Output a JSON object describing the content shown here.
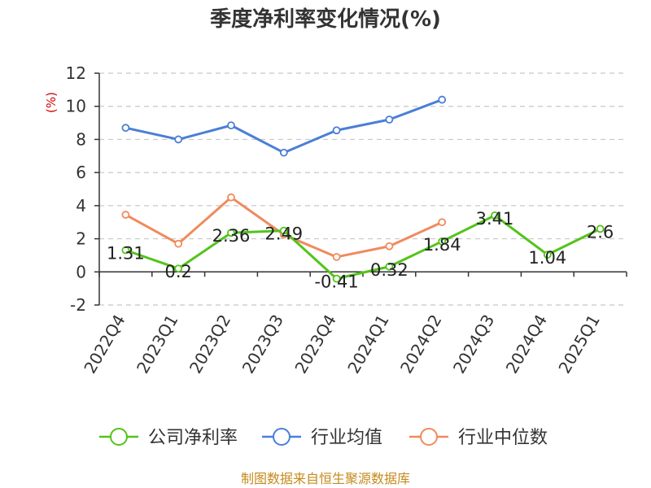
{
  "chart_data": {
    "type": "line",
    "title": "季度净利率变化情况(%)",
    "ylabel": "(%)",
    "categories": [
      "2022Q4",
      "2023Q1",
      "2023Q2",
      "2023Q3",
      "2023Q4",
      "2024Q1",
      "2024Q2",
      "2024Q3",
      "2024Q4",
      "2025Q1"
    ],
    "yticks": [
      -2,
      0,
      2,
      4,
      6,
      8,
      10,
      12
    ],
    "ylim": [
      -2,
      12
    ],
    "grid": true,
    "legend_position": "bottom",
    "series": [
      {
        "name": "公司净利率",
        "color": "#52c41a",
        "show_labels": true,
        "values": [
          1.31,
          0.2,
          2.36,
          2.49,
          -0.41,
          0.32,
          1.84,
          3.41,
          1.04,
          2.6
        ]
      },
      {
        "name": "行业均值",
        "color": "#4a7fd6",
        "show_labels": false,
        "values": [
          8.7,
          8.0,
          8.85,
          7.2,
          8.55,
          9.2,
          10.4,
          null,
          null,
          null
        ]
      },
      {
        "name": "行业中位数",
        "color": "#f08a5d",
        "show_labels": false,
        "values": [
          3.45,
          1.7,
          4.5,
          2.25,
          0.9,
          1.55,
          3.0,
          null,
          null,
          null
        ]
      }
    ]
  },
  "source": "制图数据来自恒生聚源数据库"
}
